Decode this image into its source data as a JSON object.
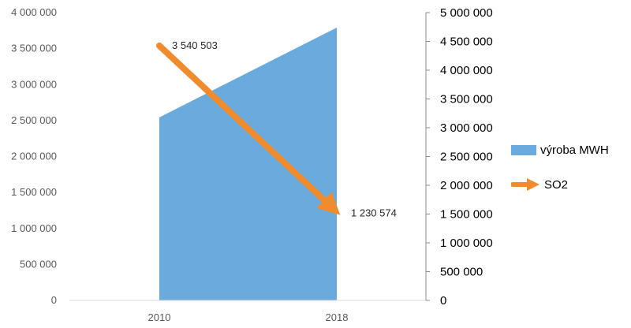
{
  "chart_data": {
    "type": "area",
    "categories": [
      "2010",
      "2018"
    ],
    "y_left": {
      "min": 0,
      "max": 4000000,
      "step": 500000
    },
    "y_right": {
      "min": 0,
      "max": 5000000,
      "step": 500000
    },
    "series": [
      {
        "name": "výroba MWH",
        "kind": "area",
        "axis": "right",
        "values": [
          3180000,
          4740000
        ]
      },
      {
        "name": "SO2",
        "kind": "arrow",
        "axis": "left",
        "values": [
          3540503,
          1230574
        ]
      }
    ],
    "data_labels": [
      "3 540 503",
      "1 230 574"
    ],
    "legend_position": "right",
    "colors": {
      "area": "#6aaadc",
      "arrow": "#f08c2d",
      "axis": "#8c8c8c"
    }
  },
  "legend": {
    "area_label": "výroba MWH",
    "arrow_label": "SO2"
  }
}
